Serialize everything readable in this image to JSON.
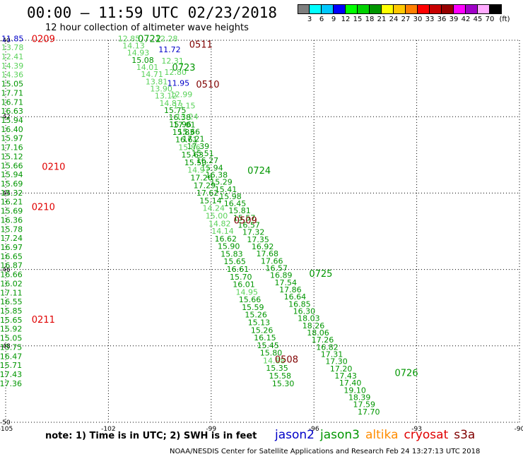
{
  "title": "00:00 – 11:59 UTC 02/23/2018",
  "subtitle": "12 hour collection of altimeter wave heights",
  "colorbar": {
    "colors": [
      "#7f7f7f",
      "#00ffff",
      "#00c8ff",
      "#0000ff",
      "#00ff00",
      "#00d200",
      "#009600",
      "#ffff00",
      "#ffc800",
      "#ff8000",
      "#ff0000",
      "#c80000",
      "#960000",
      "#ff00ff",
      "#a000c8",
      "#ffaaff",
      "#000000"
    ],
    "labels": [
      "3",
      "6",
      "9",
      "12",
      "15",
      "18",
      "21",
      "24",
      "27",
      "30",
      "33",
      "36",
      "39",
      "42",
      "45",
      "70"
    ],
    "unit": "(ft)"
  },
  "axes": {
    "lon_ticks": [
      "-105",
      "-102",
      "-99",
      "-96",
      "-93",
      "-90"
    ],
    "lat_ticks": [
      "-40",
      "-42",
      "-44",
      "-46",
      "-48",
      "-50"
    ],
    "lon_range": [
      -105,
      -90
    ],
    "lat_range": [
      -40,
      -50
    ]
  },
  "colors": {
    "red": "#e00000",
    "green": "#009600",
    "lightgreen": "#5ad25a",
    "midgreen": "#2db42d",
    "blue": "#0000c8",
    "darkred": "#800000"
  },
  "passes": [
    {
      "label": "0209",
      "color": "red",
      "lon": -103.9,
      "lat": -39.95
    },
    {
      "label": "0210",
      "color": "red",
      "lon": -103.6,
      "lat": -43.3
    },
    {
      "label": "0210",
      "color": "red",
      "lon": -103.9,
      "lat": -44.35
    },
    {
      "label": "0211",
      "color": "red",
      "lon": -103.9,
      "lat": -47.3
    },
    {
      "label": "0722",
      "color": "green",
      "lon": -100.8,
      "lat": -39.95
    },
    {
      "label": "0723",
      "color": "green",
      "lon": -99.8,
      "lat": -40.7
    },
    {
      "label": "0724",
      "color": "green",
      "lon": -97.6,
      "lat": -43.4
    },
    {
      "label": "0725",
      "color": "green",
      "lon": -95.8,
      "lat": -46.1
    },
    {
      "label": "0726",
      "color": "green",
      "lon": -93.3,
      "lat": -48.7
    },
    {
      "label": "0511",
      "color": "darkred",
      "lon": -99.3,
      "lat": -40.1
    },
    {
      "label": "0510",
      "color": "darkred",
      "lon": -99.1,
      "lat": -41.15
    },
    {
      "label": "0509",
      "color": "darkred",
      "lon": -98.0,
      "lat": -44.7
    },
    {
      "label": "0508",
      "color": "darkred",
      "lon": -96.8,
      "lat": -48.35
    }
  ],
  "tracks": [
    {
      "name": "cryosat",
      "start": [
        -104.8,
        -39.95
      ],
      "end": [
        -104.85,
        -48.98
      ],
      "values": [
        [
          "11.85",
          "blue"
        ],
        [
          "13.78",
          "lightgreen"
        ],
        [
          "12.41",
          "lightgreen"
        ],
        [
          "14.39",
          "lightgreen"
        ],
        [
          "14.36",
          "lightgreen"
        ],
        [
          "15.05",
          "green"
        ],
        [
          "17.71",
          "green"
        ],
        [
          "16.71",
          "green"
        ],
        [
          "16.63",
          "green"
        ],
        [
          "15.94",
          "green"
        ],
        [
          "16.40",
          "green"
        ],
        [
          "15.97",
          "green"
        ],
        [
          "17.16",
          "green"
        ],
        [
          "15.12",
          "green"
        ],
        [
          "15.66",
          "green"
        ],
        [
          "15.94",
          "green"
        ],
        [
          "15.69",
          "green"
        ],
        [
          "15.32",
          "green"
        ],
        [
          "16.21",
          "green"
        ],
        [
          "15.69",
          "green"
        ],
        [
          "16.36",
          "green"
        ],
        [
          "15.78",
          "green"
        ],
        [
          "17.24",
          "green"
        ],
        [
          "16.97",
          "green"
        ],
        [
          "16.65",
          "green"
        ],
        [
          "16.87",
          "green"
        ],
        [
          "16.66",
          "green"
        ],
        [
          "16.02",
          "green"
        ],
        [
          "17.11",
          "green"
        ],
        [
          "16.55",
          "green"
        ],
        [
          "15.85",
          "green"
        ],
        [
          "15.65",
          "green"
        ],
        [
          "15.92",
          "green"
        ],
        [
          "15.05",
          "green"
        ],
        [
          "15.75",
          "green"
        ],
        [
          "16.47",
          "green"
        ],
        [
          "15.71",
          "green"
        ],
        [
          "17.43",
          "green"
        ],
        [
          "17.36",
          "green"
        ]
      ]
    },
    {
      "name": "jason3-a",
      "start": [
        -101.4,
        -39.95
      ],
      "end": [
        -94.4,
        -49.72
      ],
      "values": [
        [
          "12.85",
          "lightgreen"
        ],
        [
          "14.13",
          "lightgreen"
        ],
        [
          "14.93",
          "lightgreen"
        ],
        [
          "15.08",
          "green"
        ],
        [
          "14.01",
          "lightgreen"
        ],
        [
          "14.71",
          "lightgreen"
        ],
        [
          "13.81",
          "lightgreen"
        ],
        [
          "13.90",
          "lightgreen"
        ],
        [
          "13.12",
          "lightgreen"
        ],
        [
          "14.87",
          "lightgreen"
        ],
        [
          "15.75",
          "green"
        ],
        [
          "16.38",
          "green"
        ],
        [
          "17.01",
          "green"
        ],
        [
          "15.66",
          "green"
        ],
        [
          "17.21",
          "green"
        ],
        [
          "17.39",
          "green"
        ],
        [
          "15.51",
          "green"
        ],
        [
          "16.27",
          "green"
        ],
        [
          "15.94",
          "green"
        ],
        [
          "16.38",
          "green"
        ],
        [
          "15.29",
          "green"
        ],
        [
          "15.41",
          "green"
        ],
        [
          "15.98",
          "green"
        ],
        [
          "16.45",
          "green"
        ],
        [
          "15.81",
          "green"
        ],
        [
          "15.57",
          "green"
        ],
        [
          "16.57",
          "green"
        ],
        [
          "17.32",
          "green"
        ],
        [
          "17.35",
          "green"
        ],
        [
          "16.92",
          "green"
        ],
        [
          "17.68",
          "green"
        ],
        [
          "17.66",
          "green"
        ],
        [
          "16.57",
          "green"
        ],
        [
          "16.89",
          "green"
        ],
        [
          "17.54",
          "green"
        ],
        [
          "17.86",
          "green"
        ],
        [
          "16.64",
          "green"
        ],
        [
          "16.85",
          "green"
        ],
        [
          "16.30",
          "green"
        ],
        [
          "18.03",
          "green"
        ],
        [
          "18.26",
          "green"
        ],
        [
          "18.06",
          "green"
        ],
        [
          "17.26",
          "green"
        ],
        [
          "16.82",
          "green"
        ],
        [
          "17.31",
          "green"
        ],
        [
          "17.30",
          "green"
        ],
        [
          "17.20",
          "green"
        ],
        [
          "17.43",
          "green"
        ],
        [
          "17.40",
          "green"
        ],
        [
          "19.10",
          "green"
        ],
        [
          "18.39",
          "green"
        ],
        [
          "17.59",
          "green"
        ],
        [
          "17.70",
          "green"
        ]
      ]
    },
    {
      "name": "jason2",
      "start": [
        -100.3,
        -39.95
      ],
      "end": [
        -99.7,
        -42.0
      ],
      "values": [
        [
          "12.28",
          "lightgreen"
        ],
        [
          "11.72",
          "blue"
        ],
        [
          "12.31",
          "lightgreen"
        ],
        [
          "12.80",
          "lightgreen"
        ],
        [
          "11.95",
          "blue"
        ],
        [
          "12.99",
          "lightgreen"
        ],
        [
          "13.15",
          "lightgreen"
        ],
        [
          "13.24",
          "lightgreen"
        ]
      ]
    },
    {
      "name": "jason3-b",
      "start": [
        -99.9,
        -42.2
      ],
      "end": [
        -96.9,
        -48.98
      ],
      "values": [
        [
          "15.96",
          "green"
        ],
        [
          "15.83",
          "green"
        ],
        [
          "16.61",
          "green"
        ],
        [
          "15.86",
          "lightgreen"
        ],
        [
          "15.63",
          "green"
        ],
        [
          "15.50",
          "green"
        ],
        [
          "14.97",
          "lightgreen"
        ],
        [
          "17.26",
          "green"
        ],
        [
          "17.29",
          "green"
        ],
        [
          "17.62",
          "green"
        ],
        [
          "15.14",
          "green"
        ],
        [
          "14.24",
          "lightgreen"
        ],
        [
          "15.00",
          "lightgreen"
        ],
        [
          "14.82",
          "lightgreen"
        ],
        [
          "14.14",
          "lightgreen"
        ],
        [
          "16.62",
          "green"
        ],
        [
          "15.90",
          "green"
        ],
        [
          "15.83",
          "green"
        ],
        [
          "15.65",
          "green"
        ],
        [
          "16.61",
          "green"
        ],
        [
          "15.70",
          "green"
        ],
        [
          "16.01",
          "green"
        ],
        [
          "14.95",
          "lightgreen"
        ],
        [
          "15.66",
          "green"
        ],
        [
          "15.59",
          "green"
        ],
        [
          "15.26",
          "green"
        ],
        [
          "15.13",
          "green"
        ],
        [
          "15.26",
          "green"
        ],
        [
          "16.15",
          "green"
        ],
        [
          "15.45",
          "green"
        ],
        [
          "15.80",
          "green"
        ],
        [
          "14.88",
          "lightgreen"
        ],
        [
          "15.35",
          "green"
        ],
        [
          "15.58",
          "green"
        ],
        [
          "15.30",
          "green"
        ]
      ]
    }
  ],
  "note": "note:  1) Time is in UTC;  2) SWH is in feet",
  "legend": [
    {
      "label": "jason2",
      "color": "#0000c8"
    },
    {
      "label": "jason3",
      "color": "#009600"
    },
    {
      "label": "altika",
      "color": "#ff8c00"
    },
    {
      "label": "cryosat",
      "color": "#e00000"
    },
    {
      "label": "s3a",
      "color": "#800000"
    }
  ],
  "credit": "NOAA/NESDIS Center for Satellite Applications and Research     Feb 24 13:27:13 UTC 2018"
}
